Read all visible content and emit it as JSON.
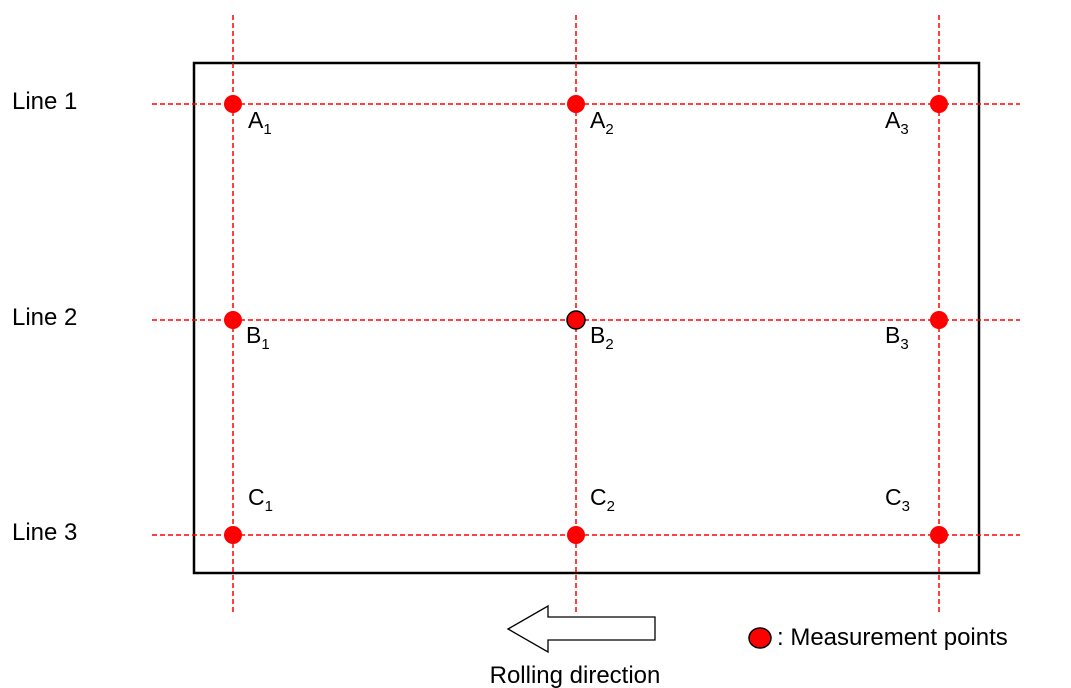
{
  "lines": [
    {
      "label": "Line 1"
    },
    {
      "label": "Line 2"
    },
    {
      "label": "Line 3"
    }
  ],
  "points": [
    {
      "letter": "A",
      "sub": "1",
      "color": "#ff0000"
    },
    {
      "letter": "A",
      "sub": "2",
      "color": "#ff0000"
    },
    {
      "letter": "A",
      "sub": "3",
      "color": "#ff0000"
    },
    {
      "letter": "B",
      "sub": "1",
      "color": "#ff0000"
    },
    {
      "letter": "B",
      "sub": "2",
      "color": "#ff0000"
    },
    {
      "letter": "B",
      "sub": "3",
      "color": "#ff0000"
    },
    {
      "letter": "C",
      "sub": "1",
      "color": "#ff0000"
    },
    {
      "letter": "C",
      "sub": "2",
      "color": "#ff0000"
    },
    {
      "letter": "C",
      "sub": "3",
      "color": "#ff0000"
    }
  ],
  "arrow": {
    "label": "Rolling direction",
    "direction": "left"
  },
  "legend": {
    "marker_color": "#ff0000",
    "label": ": Measurement points"
  },
  "colors": {
    "guide_line": "#ff0000",
    "frame": "#000000",
    "marker": "#ff0000"
  }
}
